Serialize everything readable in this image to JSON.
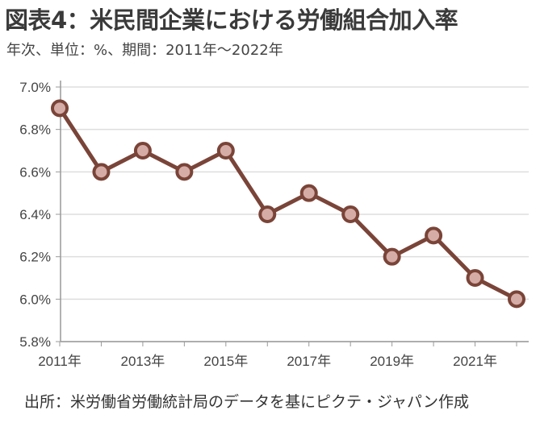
{
  "title": "図表4：米民間企業における労働組合加入率",
  "subtitle": "年次、単位：%、期間：2011年～2022年",
  "caption": "出所：米労働省労働統計局のデータを基にピクテ・ジャパン作成",
  "chart_data": {
    "type": "line",
    "x": [
      2011,
      2012,
      2013,
      2014,
      2015,
      2016,
      2017,
      2018,
      2019,
      2020,
      2021,
      2022
    ],
    "values": [
      6.9,
      6.6,
      6.7,
      6.6,
      6.7,
      6.4,
      6.5,
      6.4,
      6.2,
      6.3,
      6.1,
      6.0
    ],
    "ylim": [
      5.8,
      7.0
    ],
    "yticks": [
      "5.8%",
      "6.0%",
      "6.2%",
      "6.4%",
      "6.6%",
      "6.8%",
      "7.0%"
    ],
    "xticks": [
      "2011年",
      "2013年",
      "2015年",
      "2017年",
      "2019年",
      "2021年"
    ],
    "grid": true,
    "colors": {
      "line": "#7a4438",
      "marker_fill": "#d6aca6",
      "grid": "#dddddd"
    }
  }
}
